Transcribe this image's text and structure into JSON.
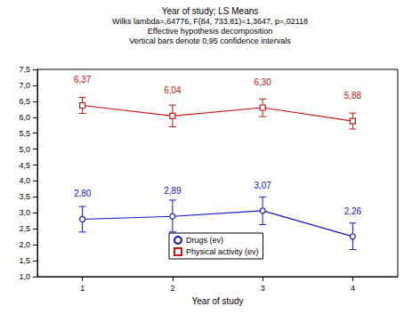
{
  "chart_data": {
    "type": "line",
    "title": "Year of study; LS Means",
    "subtitle": "Wilks lambda=,64776, F(84, 733,81)=1,3647, p=,02118\nEffective hypothesis decomposition\nVertical bars denote 0,95 confidence intervals",
    "x_label": "Year of study",
    "categories": [
      "1",
      "2",
      "3",
      "4"
    ],
    "series": [
      {
        "name": "Drugs (ev)",
        "color": "#1414c8",
        "marker": "circle",
        "values": [
          2.8,
          2.89,
          3.07,
          2.26
        ],
        "value_labels": [
          "2,80",
          "2,89",
          "3,07",
          "2,26"
        ],
        "error_low": [
          2.4,
          2.4,
          2.63,
          1.85
        ],
        "error_high": [
          3.2,
          3.4,
          3.5,
          2.68
        ]
      },
      {
        "name": "Physical activity (ev)",
        "color": "#c81414",
        "marker": "square",
        "values": [
          6.37,
          6.04,
          6.3,
          5.88
        ],
        "value_labels": [
          "6,37",
          "6,04",
          "6,30",
          "5,88"
        ],
        "error_low": [
          6.12,
          5.7,
          6.02,
          5.63
        ],
        "error_high": [
          6.62,
          6.38,
          6.57,
          6.13
        ]
      }
    ],
    "ylim": [
      1.0,
      7.5
    ],
    "yticks": [
      {
        "value": 1.0,
        "label": "1,0"
      },
      {
        "value": 1.5,
        "label": "1,5"
      },
      {
        "value": 2.0,
        "label": "2,0"
      },
      {
        "value": 2.5,
        "label": "2,5"
      },
      {
        "value": 3.0,
        "label": "3,0"
      },
      {
        "value": 3.5,
        "label": "3,5"
      },
      {
        "value": 4.0,
        "label": "4,0"
      },
      {
        "value": 4.5,
        "label": "4,5"
      },
      {
        "value": 5.0,
        "label": "5,0"
      },
      {
        "value": 5.5,
        "label": "5,5"
      },
      {
        "value": 6.0,
        "label": "6,0"
      },
      {
        "value": 6.5,
        "label": "6,5"
      },
      {
        "value": 7.0,
        "label": "7,0"
      },
      {
        "value": 7.5,
        "label": "7,5"
      }
    ],
    "grid": false,
    "legend": "lower left",
    "data_labels": true
  }
}
